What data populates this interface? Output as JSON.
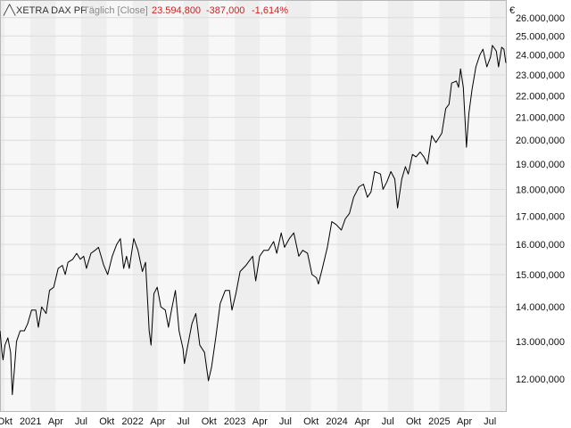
{
  "header": {
    "symbol": "XETRA DAX PF",
    "interval": "Täglich [Close]",
    "last": "23.594,800",
    "change": "-387,000",
    "change_pct": "-1,614%",
    "currency": "€"
  },
  "colors": {
    "line": "#000000",
    "band_light": "#f7f7f7",
    "band_dark": "#eeeeee",
    "grid": "#dcdcdc",
    "negative": "#cc2222"
  },
  "chart_data": {
    "type": "line",
    "title": "XETRA DAX PF",
    "ylabel": "€",
    "xlabel": "",
    "grid": true,
    "scale": "log",
    "ylim": [
      11200000,
      27000000
    ],
    "xlim": [
      "2020-09-14",
      "2025-08-27"
    ],
    "yticks": [
      {
        "v": 12000000,
        "label": "12.000,000"
      },
      {
        "v": 13000000,
        "label": "13.000,000"
      },
      {
        "v": 14000000,
        "label": "14.000,000"
      },
      {
        "v": 15000000,
        "label": "15.000,000"
      },
      {
        "v": 16000000,
        "label": "16.000,000"
      },
      {
        "v": 17000000,
        "label": "17.000,000"
      },
      {
        "v": 18000000,
        "label": "18.000,000"
      },
      {
        "v": 19000000,
        "label": "19.000,000"
      },
      {
        "v": 20000000,
        "label": "20.000,000"
      },
      {
        "v": 21000000,
        "label": "21.000,000"
      },
      {
        "v": 22000000,
        "label": "22.000,000"
      },
      {
        "v": 23000000,
        "label": "23.000,000"
      },
      {
        "v": 24000000,
        "label": "24.000,000"
      },
      {
        "v": 25000000,
        "label": "25.000,000"
      },
      {
        "v": 26000000,
        "label": "26.000,000"
      }
    ],
    "xticks": [
      {
        "d": "2020-10-01",
        "label": "Okt"
      },
      {
        "d": "2021-01-01",
        "label": "2021"
      },
      {
        "d": "2021-04-01",
        "label": "Apr"
      },
      {
        "d": "2021-07-01",
        "label": "Jul"
      },
      {
        "d": "2021-10-01",
        "label": "Okt"
      },
      {
        "d": "2022-01-01",
        "label": "2022"
      },
      {
        "d": "2022-04-01",
        "label": "Apr"
      },
      {
        "d": "2022-07-01",
        "label": "Jul"
      },
      {
        "d": "2022-10-01",
        "label": "Okt"
      },
      {
        "d": "2023-01-01",
        "label": "2023"
      },
      {
        "d": "2023-04-01",
        "label": "Apr"
      },
      {
        "d": "2023-07-01",
        "label": "Jul"
      },
      {
        "d": "2023-10-01",
        "label": "Okt"
      },
      {
        "d": "2024-01-01",
        "label": "2024"
      },
      {
        "d": "2024-04-01",
        "label": "Apr"
      },
      {
        "d": "2024-07-01",
        "label": "Jul"
      },
      {
        "d": "2024-10-01",
        "label": "Okt"
      },
      {
        "d": "2025-01-01",
        "label": "2025"
      },
      {
        "d": "2025-04-01",
        "label": "Apr"
      },
      {
        "d": "2025-07-01",
        "label": "Jul"
      }
    ],
    "series": [
      {
        "values": [
          [
            "2020-09-14",
            13300000
          ],
          [
            "2020-09-21",
            12700000
          ],
          [
            "2020-09-25",
            12500000
          ],
          [
            "2020-10-02",
            12900000
          ],
          [
            "2020-10-12",
            13100000
          ],
          [
            "2020-10-22",
            12700000
          ],
          [
            "2020-10-28",
            11600000
          ],
          [
            "2020-11-04",
            12200000
          ],
          [
            "2020-11-12",
            13000000
          ],
          [
            "2020-11-25",
            13300000
          ],
          [
            "2020-12-10",
            13300000
          ],
          [
            "2020-12-22",
            13500000
          ],
          [
            "2021-01-05",
            13900000
          ],
          [
            "2021-01-20",
            13900000
          ],
          [
            "2021-01-29",
            13400000
          ],
          [
            "2021-02-10",
            14000000
          ],
          [
            "2021-02-26",
            13800000
          ],
          [
            "2021-03-10",
            14500000
          ],
          [
            "2021-03-25",
            14600000
          ],
          [
            "2021-04-10",
            15200000
          ],
          [
            "2021-04-25",
            15300000
          ],
          [
            "2021-05-05",
            15000000
          ],
          [
            "2021-05-15",
            15400000
          ],
          [
            "2021-06-01",
            15500000
          ],
          [
            "2021-06-15",
            15700000
          ],
          [
            "2021-06-28",
            15500000
          ],
          [
            "2021-07-10",
            15600000
          ],
          [
            "2021-07-20",
            15200000
          ],
          [
            "2021-08-05",
            15700000
          ],
          [
            "2021-08-20",
            15800000
          ],
          [
            "2021-09-01",
            15900000
          ],
          [
            "2021-09-20",
            15300000
          ],
          [
            "2021-10-04",
            15000000
          ],
          [
            "2021-10-20",
            15600000
          ],
          [
            "2021-11-05",
            16000000
          ],
          [
            "2021-11-18",
            16200000
          ],
          [
            "2021-11-30",
            15200000
          ],
          [
            "2021-12-10",
            15600000
          ],
          [
            "2021-12-20",
            15200000
          ],
          [
            "2022-01-05",
            16200000
          ],
          [
            "2022-01-20",
            15800000
          ],
          [
            "2022-02-05",
            15100000
          ],
          [
            "2022-02-16",
            15400000
          ],
          [
            "2022-02-24",
            14100000
          ],
          [
            "2022-03-01",
            13300000
          ],
          [
            "2022-03-08",
            12900000
          ],
          [
            "2022-03-18",
            14400000
          ],
          [
            "2022-03-30",
            14600000
          ],
          [
            "2022-04-12",
            14000000
          ],
          [
            "2022-04-28",
            13900000
          ],
          [
            "2022-05-09",
            13400000
          ],
          [
            "2022-05-20",
            13900000
          ],
          [
            "2022-06-03",
            14500000
          ],
          [
            "2022-06-16",
            13300000
          ],
          [
            "2022-06-30",
            12800000
          ],
          [
            "2022-07-05",
            12400000
          ],
          [
            "2022-07-15",
            12800000
          ],
          [
            "2022-08-01",
            13500000
          ],
          [
            "2022-08-15",
            13800000
          ],
          [
            "2022-08-29",
            12900000
          ],
          [
            "2022-09-15",
            12700000
          ],
          [
            "2022-09-29",
            11950000
          ],
          [
            "2022-10-10",
            12300000
          ],
          [
            "2022-10-25",
            13100000
          ],
          [
            "2022-11-10",
            14100000
          ],
          [
            "2022-11-28",
            14500000
          ],
          [
            "2022-12-13",
            14500000
          ],
          [
            "2022-12-22",
            13900000
          ],
          [
            "2023-01-05",
            14400000
          ],
          [
            "2023-01-20",
            15100000
          ],
          [
            "2023-02-10",
            15300000
          ],
          [
            "2023-03-06",
            15600000
          ],
          [
            "2023-03-17",
            14800000
          ],
          [
            "2023-03-31",
            15600000
          ],
          [
            "2023-04-15",
            15800000
          ],
          [
            "2023-05-01",
            15800000
          ],
          [
            "2023-05-20",
            16100000
          ],
          [
            "2023-05-31",
            15700000
          ],
          [
            "2023-06-16",
            16400000
          ],
          [
            "2023-06-28",
            15900000
          ],
          [
            "2023-07-15",
            16200000
          ],
          [
            "2023-07-31",
            16400000
          ],
          [
            "2023-08-18",
            15600000
          ],
          [
            "2023-09-01",
            15800000
          ],
          [
            "2023-09-18",
            15700000
          ],
          [
            "2023-10-04",
            15000000
          ],
          [
            "2023-10-20",
            14900000
          ],
          [
            "2023-10-27",
            14700000
          ],
          [
            "2023-11-10",
            15200000
          ],
          [
            "2023-11-28",
            15900000
          ],
          [
            "2023-12-14",
            16800000
          ],
          [
            "2023-12-29",
            16700000
          ],
          [
            "2024-01-17",
            16500000
          ],
          [
            "2024-01-31",
            16900000
          ],
          [
            "2024-02-15",
            17100000
          ],
          [
            "2024-03-01",
            17700000
          ],
          [
            "2024-03-20",
            18100000
          ],
          [
            "2024-04-05",
            18200000
          ],
          [
            "2024-04-19",
            17700000
          ],
          [
            "2024-05-02",
            17900000
          ],
          [
            "2024-05-15",
            18700000
          ],
          [
            "2024-06-05",
            18600000
          ],
          [
            "2024-06-14",
            18000000
          ],
          [
            "2024-06-28",
            18300000
          ],
          [
            "2024-07-12",
            18700000
          ],
          [
            "2024-07-26",
            18400000
          ],
          [
            "2024-08-05",
            17300000
          ],
          [
            "2024-08-20",
            18400000
          ],
          [
            "2024-09-02",
            18900000
          ],
          [
            "2024-09-12",
            18600000
          ],
          [
            "2024-09-27",
            19400000
          ],
          [
            "2024-10-10",
            19300000
          ],
          [
            "2024-10-25",
            19500000
          ],
          [
            "2024-11-07",
            19300000
          ],
          [
            "2024-11-20",
            19000000
          ],
          [
            "2024-12-05",
            20200000
          ],
          [
            "2024-12-20",
            19900000
          ],
          [
            "2025-01-10",
            20300000
          ],
          [
            "2025-01-24",
            21400000
          ],
          [
            "2025-02-05",
            21600000
          ],
          [
            "2025-02-14",
            22600000
          ],
          [
            "2025-03-03",
            22700000
          ],
          [
            "2025-03-11",
            22400000
          ],
          [
            "2025-03-18",
            23300000
          ],
          [
            "2025-03-28",
            22400000
          ],
          [
            "2025-04-04",
            20700000
          ],
          [
            "2025-04-08",
            19700000
          ],
          [
            "2025-04-17",
            21200000
          ],
          [
            "2025-04-28",
            22300000
          ],
          [
            "2025-05-12",
            23400000
          ],
          [
            "2025-05-26",
            24000000
          ],
          [
            "2025-06-06",
            24300000
          ],
          [
            "2025-06-20",
            23400000
          ],
          [
            "2025-07-03",
            23900000
          ],
          [
            "2025-07-10",
            24500000
          ],
          [
            "2025-07-24",
            24200000
          ],
          [
            "2025-08-01",
            23400000
          ],
          [
            "2025-08-12",
            24400000
          ],
          [
            "2025-08-20",
            24300000
          ],
          [
            "2025-08-27",
            23594800
          ]
        ]
      }
    ]
  }
}
